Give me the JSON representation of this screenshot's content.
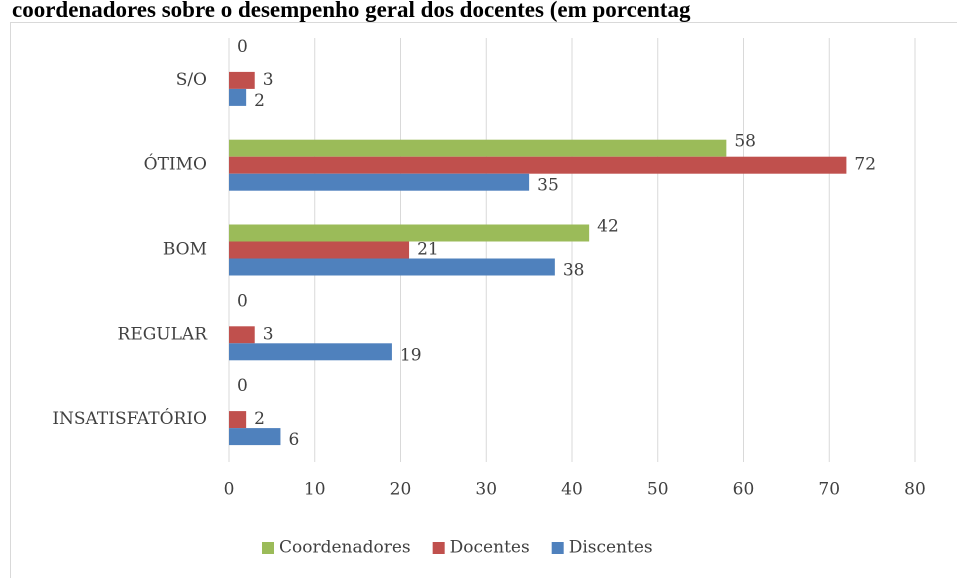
{
  "chart_data": {
    "type": "bar",
    "orientation": "horizontal",
    "title": "coordenadores sobre o desempenho geral dos docentes (em porcentag",
    "categories": [
      "INSATISFATÓRIO",
      "REGULAR",
      "BOM",
      "ÓTIMO",
      "S/O"
    ],
    "series": [
      {
        "name": "Coordenadores",
        "color": "#9bbb59",
        "values": [
          0,
          0,
          42,
          58,
          0
        ]
      },
      {
        "name": "Docentes",
        "color": "#c0504d",
        "values": [
          2,
          3,
          21,
          72,
          3
        ]
      },
      {
        "name": "Discentes",
        "color": "#4f81bd",
        "values": [
          6,
          19,
          38,
          35,
          2
        ]
      }
    ],
    "xlim": [
      0,
      80
    ],
    "xticks": [
      0,
      10,
      20,
      30,
      40,
      50,
      60,
      70,
      80
    ],
    "grid": true,
    "legend": "bottom"
  }
}
